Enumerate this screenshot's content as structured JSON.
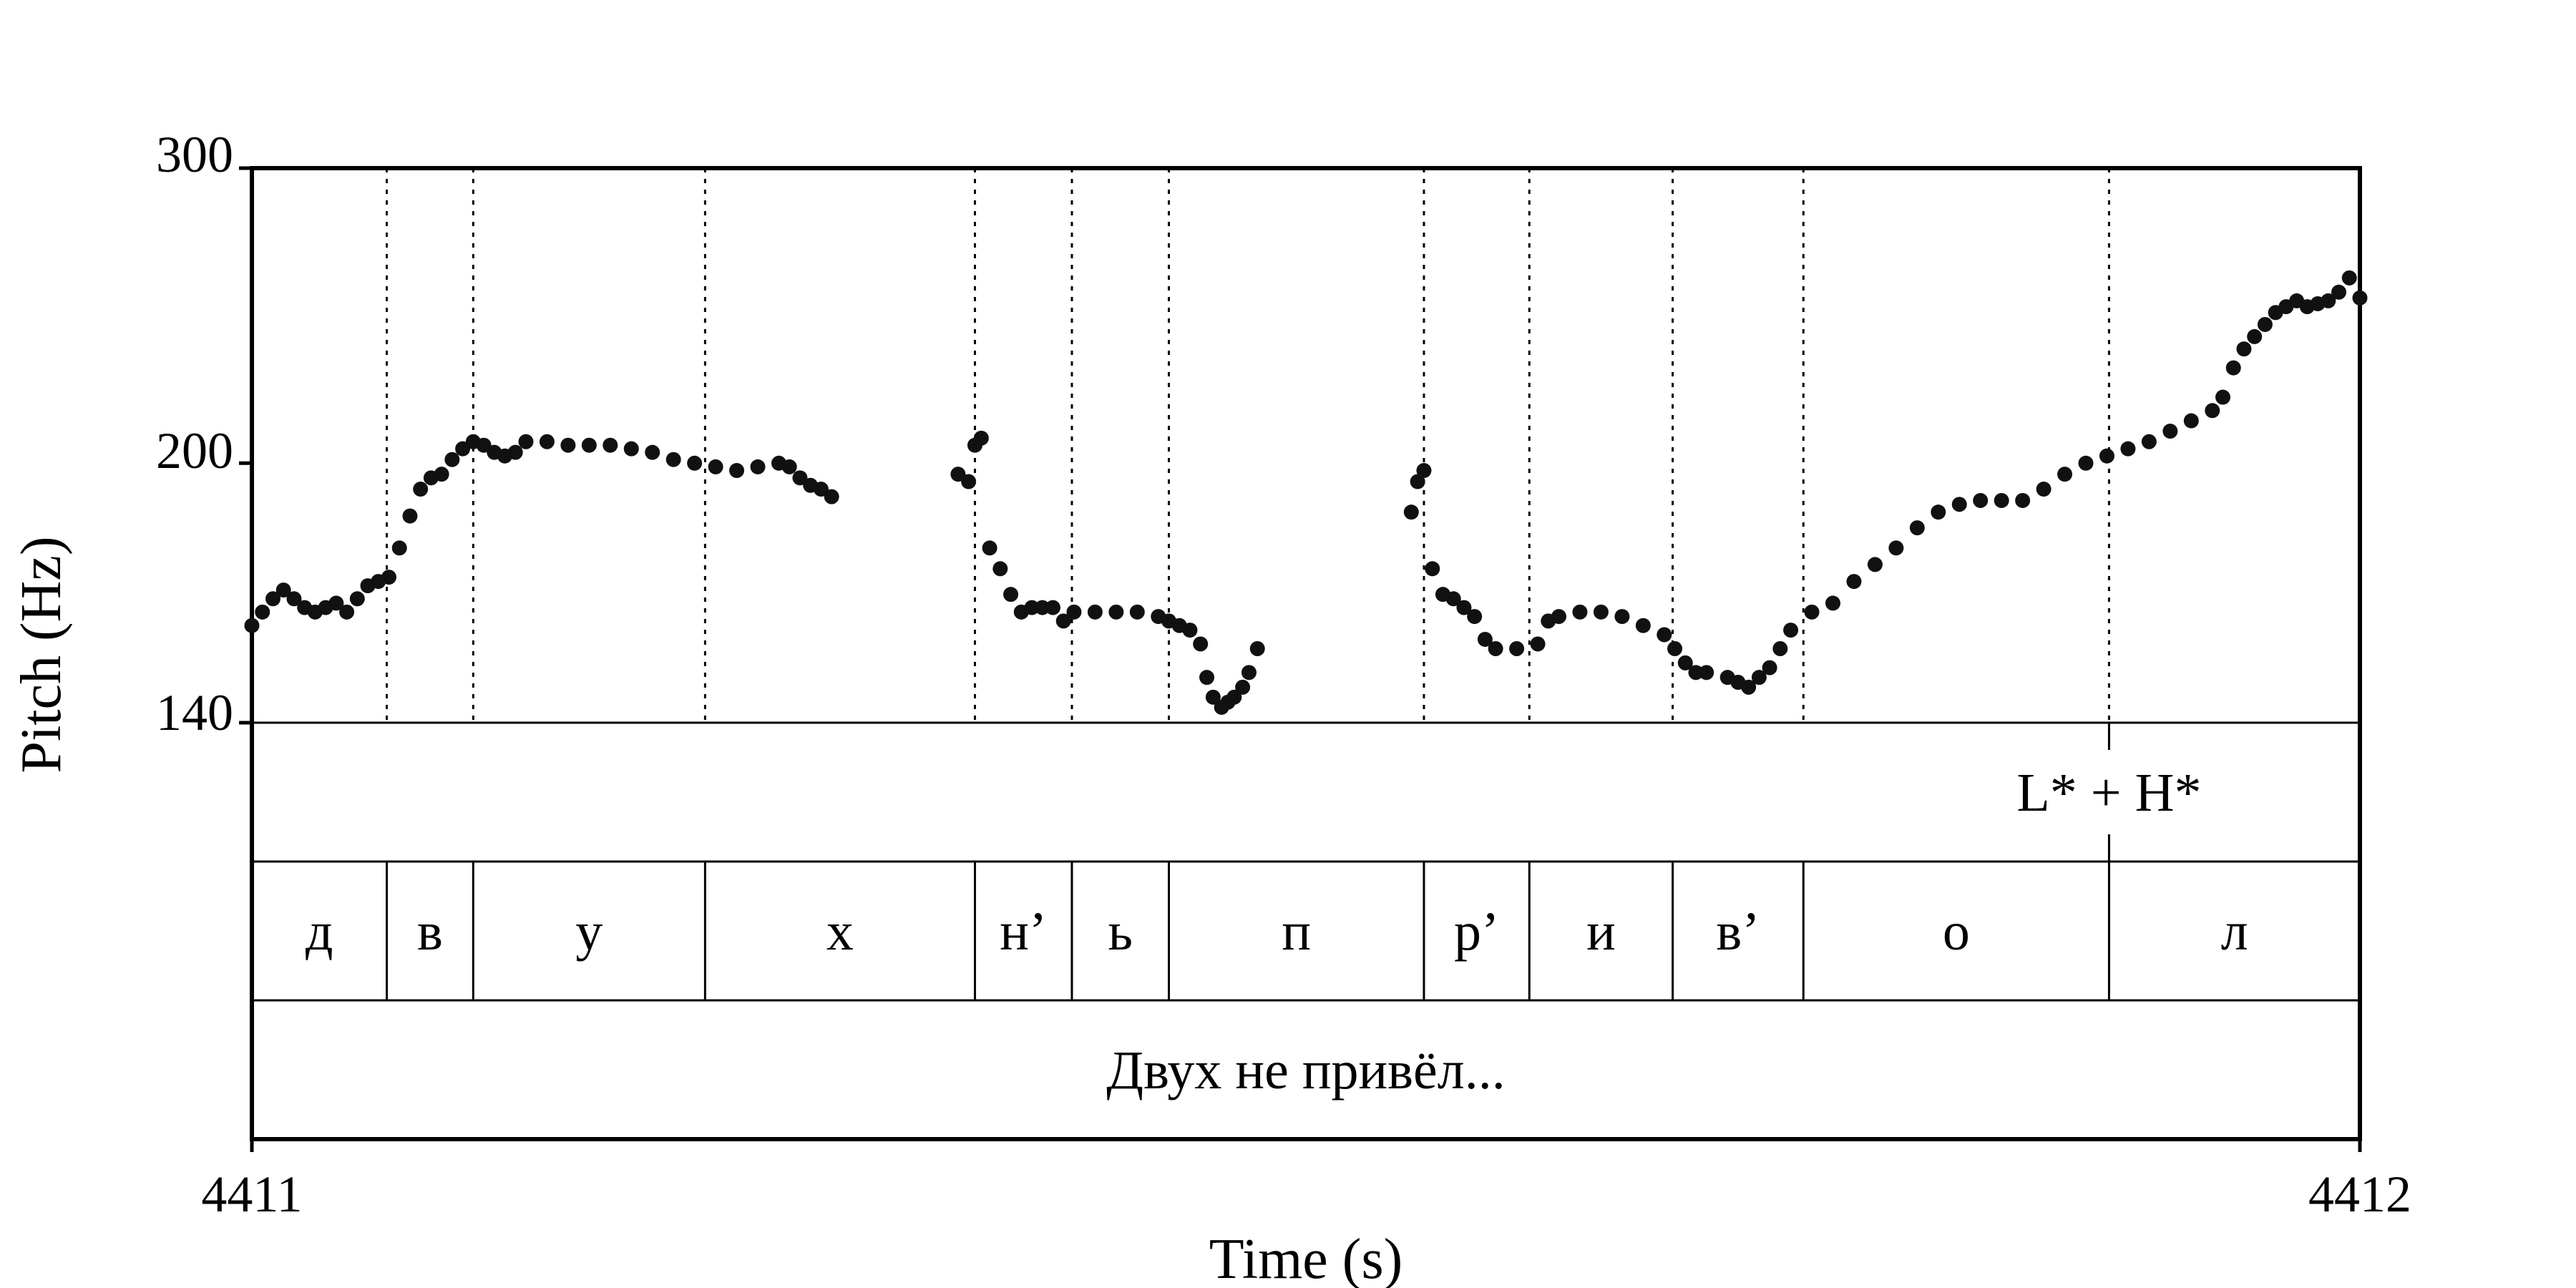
{
  "chart_data": {
    "type": "scatter",
    "xlabel": "Time (s)",
    "ylabel": "Pitch (Hz)",
    "xlim": [
      4411,
      4412
    ],
    "ylim": [
      140,
      300
    ],
    "y_scale": "log",
    "x_ticks": [
      "4411",
      "4412"
    ],
    "y_ticks": [
      {
        "value": 300,
        "label": "300"
      },
      {
        "value": 200,
        "label": "200"
      },
      {
        "value": 140,
        "label": "140"
      }
    ],
    "grid": false,
    "marker_color": "#111111",
    "pitch_contour": [
      [
        4411.0,
        160
      ],
      [
        4411.005,
        163
      ],
      [
        4411.01,
        166
      ],
      [
        4411.015,
        168
      ],
      [
        4411.02,
        166
      ],
      [
        4411.025,
        164
      ],
      [
        4411.03,
        163
      ],
      [
        4411.035,
        164
      ],
      [
        4411.04,
        165
      ],
      [
        4411.045,
        163
      ],
      [
        4411.05,
        166
      ],
      [
        4411.055,
        169
      ],
      [
        4411.06,
        170
      ],
      [
        4411.065,
        171
      ],
      [
        4411.07,
        178
      ],
      [
        4411.075,
        186
      ],
      [
        4411.08,
        193
      ],
      [
        4411.085,
        196
      ],
      [
        4411.09,
        197
      ],
      [
        4411.095,
        201
      ],
      [
        4411.1,
        204
      ],
      [
        4411.105,
        206
      ],
      [
        4411.11,
        205
      ],
      [
        4411.115,
        203
      ],
      [
        4411.12,
        202
      ],
      [
        4411.125,
        203
      ],
      [
        4411.13,
        206
      ],
      [
        4411.14,
        206
      ],
      [
        4411.15,
        205
      ],
      [
        4411.16,
        205
      ],
      [
        4411.17,
        205
      ],
      [
        4411.18,
        204
      ],
      [
        4411.19,
        203
      ],
      [
        4411.2,
        201
      ],
      [
        4411.21,
        200
      ],
      [
        4411.22,
        199
      ],
      [
        4411.23,
        198
      ],
      [
        4411.24,
        199
      ],
      [
        4411.25,
        200
      ],
      [
        4411.255,
        199
      ],
      [
        4411.26,
        196
      ],
      [
        4411.265,
        194
      ],
      [
        4411.27,
        193
      ],
      [
        4411.275,
        191
      ],
      [
        4411.335,
        197
      ],
      [
        4411.34,
        195
      ],
      [
        4411.343,
        205
      ],
      [
        4411.346,
        207
      ],
      [
        4411.35,
        178
      ],
      [
        4411.355,
        173
      ],
      [
        4411.36,
        167
      ],
      [
        4411.365,
        163
      ],
      [
        4411.37,
        164
      ],
      [
        4411.375,
        164
      ],
      [
        4411.38,
        164
      ],
      [
        4411.385,
        161
      ],
      [
        4411.39,
        163
      ],
      [
        4411.4,
        163
      ],
      [
        4411.41,
        163
      ],
      [
        4411.42,
        163
      ],
      [
        4411.43,
        162
      ],
      [
        4411.435,
        161
      ],
      [
        4411.44,
        160
      ],
      [
        4411.445,
        159
      ],
      [
        4411.45,
        156
      ],
      [
        4411.453,
        149
      ],
      [
        4411.456,
        145
      ],
      [
        4411.46,
        143
      ],
      [
        4411.463,
        144
      ],
      [
        4411.466,
        145
      ],
      [
        4411.47,
        147
      ],
      [
        4411.473,
        150
      ],
      [
        4411.477,
        155
      ],
      [
        4411.55,
        187
      ],
      [
        4411.553,
        195
      ],
      [
        4411.556,
        198
      ],
      [
        4411.56,
        173
      ],
      [
        4411.565,
        167
      ],
      [
        4411.57,
        166
      ],
      [
        4411.575,
        164
      ],
      [
        4411.58,
        162
      ],
      [
        4411.585,
        157
      ],
      [
        4411.59,
        155
      ],
      [
        4411.6,
        155
      ],
      [
        4411.61,
        156
      ],
      [
        4411.615,
        161
      ],
      [
        4411.62,
        162
      ],
      [
        4411.63,
        163
      ],
      [
        4411.64,
        163
      ],
      [
        4411.65,
        162
      ],
      [
        4411.66,
        160
      ],
      [
        4411.67,
        158
      ],
      [
        4411.675,
        155
      ],
      [
        4411.68,
        152
      ],
      [
        4411.685,
        150
      ],
      [
        4411.69,
        150
      ],
      [
        4411.7,
        149
      ],
      [
        4411.705,
        148
      ],
      [
        4411.71,
        147
      ],
      [
        4411.715,
        149
      ],
      [
        4411.72,
        151
      ],
      [
        4411.725,
        155
      ],
      [
        4411.73,
        159
      ],
      [
        4411.74,
        163
      ],
      [
        4411.75,
        165
      ],
      [
        4411.76,
        170
      ],
      [
        4411.77,
        174
      ],
      [
        4411.78,
        178
      ],
      [
        4411.79,
        183
      ],
      [
        4411.8,
        187
      ],
      [
        4411.81,
        189
      ],
      [
        4411.82,
        190
      ],
      [
        4411.83,
        190
      ],
      [
        4411.84,
        190
      ],
      [
        4411.85,
        193
      ],
      [
        4411.86,
        197
      ],
      [
        4411.87,
        200
      ],
      [
        4411.88,
        202
      ],
      [
        4411.89,
        204
      ],
      [
        4411.9,
        206
      ],
      [
        4411.91,
        209
      ],
      [
        4411.92,
        212
      ],
      [
        4411.93,
        215
      ],
      [
        4411.935,
        219
      ],
      [
        4411.94,
        228
      ],
      [
        4411.945,
        234
      ],
      [
        4411.95,
        238
      ],
      [
        4411.955,
        242
      ],
      [
        4411.96,
        246
      ],
      [
        4411.965,
        248
      ],
      [
        4411.97,
        250
      ],
      [
        4411.975,
        248
      ],
      [
        4411.98,
        249
      ],
      [
        4411.985,
        250
      ],
      [
        4411.99,
        253
      ],
      [
        4411.995,
        258
      ],
      [
        4412.0,
        251
      ]
    ],
    "annotations": [
      {
        "text": "L* + H*",
        "time": 4411.881
      }
    ],
    "boundaries": [
      4411.064,
      4411.105,
      4411.215,
      4411.343,
      4411.389,
      4411.435,
      4411.556,
      4411.606,
      4411.674,
      4411.736,
      4411.881
    ],
    "tiers": [
      {
        "name": "segments",
        "intervals": [
          {
            "label": "д",
            "start": 4411.0,
            "end": 4411.064
          },
          {
            "label": "в",
            "start": 4411.064,
            "end": 4411.105
          },
          {
            "label": "у",
            "start": 4411.105,
            "end": 4411.215
          },
          {
            "label": "х",
            "start": 4411.215,
            "end": 4411.343
          },
          {
            "label": "н’",
            "start": 4411.343,
            "end": 4411.389
          },
          {
            "label": "ь",
            "start": 4411.389,
            "end": 4411.435
          },
          {
            "label": "п",
            "start": 4411.435,
            "end": 4411.556
          },
          {
            "label": "р’",
            "start": 4411.556,
            "end": 4411.606
          },
          {
            "label": "и",
            "start": 4411.606,
            "end": 4411.674
          },
          {
            "label": "в’",
            "start": 4411.674,
            "end": 4411.736
          },
          {
            "label": "о",
            "start": 4411.736,
            "end": 4411.881
          },
          {
            "label": "л",
            "start": 4411.881,
            "end": 4412.0
          }
        ]
      },
      {
        "name": "words",
        "intervals": [
          {
            "label": "Двух не привёл...",
            "start": 4411.0,
            "end": 4412.0
          }
        ]
      }
    ]
  }
}
